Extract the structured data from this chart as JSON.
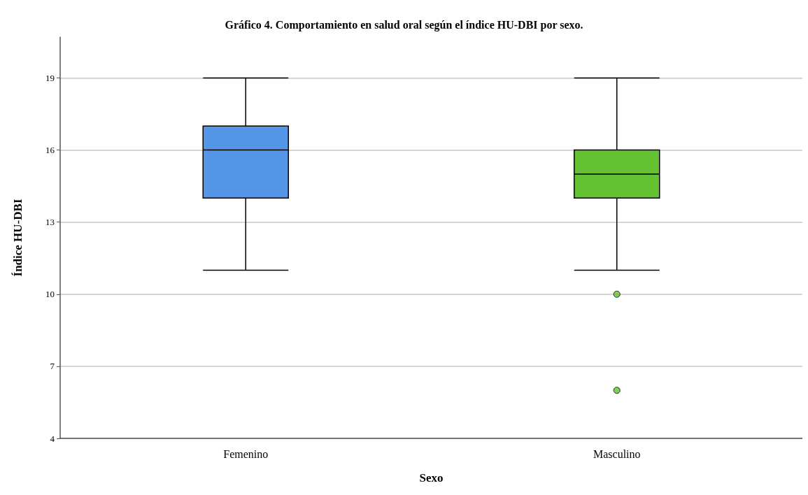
{
  "chart_data": {
    "type": "box",
    "title": "Gráfico 4. Comportamiento en salud oral según el índice HU-DBI por sexo.",
    "xlabel": "Sexo",
    "ylabel": "Índice HU-DBI",
    "categories": [
      "Femenino",
      "Masculino"
    ],
    "colors": [
      "#5596e6",
      "#63c132"
    ],
    "boxes": [
      {
        "low": 11,
        "q1": 14,
        "median": 16,
        "q3": 17,
        "high": 19
      },
      {
        "low": 11,
        "q1": 14,
        "median": 15,
        "q3": 16,
        "high": 19,
        "outliers": [
          10,
          6
        ]
      }
    ],
    "ylim": [
      4,
      20.7
    ],
    "yticks": [
      4,
      7,
      10,
      13,
      16,
      19
    ],
    "grid": "y"
  }
}
